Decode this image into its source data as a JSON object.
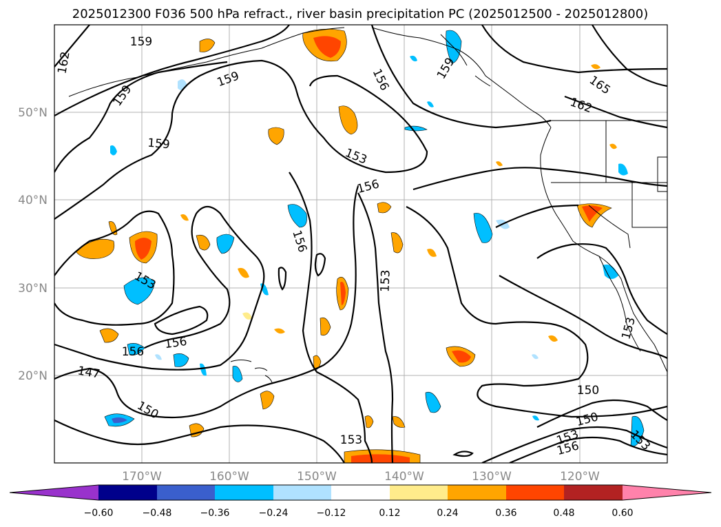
{
  "title": "2025012300 F036 500 hPa refract., river basin precipitation PC (2025012500 - 2025012800)",
  "latitude_labels": [
    "50°N",
    "40°N",
    "30°N",
    "20°N"
  ],
  "longitude_labels": [
    "170°W",
    "160°W",
    "150°W",
    "140°W",
    "130°W",
    "120°W"
  ],
  "contour_labels": [
    "159",
    "162",
    "159",
    "159",
    "159",
    "156",
    "159",
    "162",
    "165",
    "153",
    "156",
    "156",
    "153",
    "153",
    "156",
    "156",
    "147",
    "150",
    "153",
    "153",
    "150",
    "150",
    "153",
    "156",
    "153"
  ],
  "colorbar": {
    "colors": [
      "#9932cc",
      "#00008b",
      "#3a5fcd",
      "#00bfff",
      "#b0e2ff",
      "#ffffff",
      "#ffec8b",
      "#ffa500",
      "#ff4500",
      "#b22222",
      "#ff82ab"
    ],
    "tick_labels": [
      "−0.60",
      "−0.48",
      "−0.36",
      "−0.24",
      "−0.12",
      "0.12",
      "0.24",
      "0.36",
      "0.48",
      "0.60"
    ],
    "levels": [
      -0.6,
      -0.48,
      -0.36,
      -0.24,
      -0.12,
      0.12,
      0.24,
      0.36,
      0.48,
      0.6
    ]
  },
  "map_extent": {
    "lon": [
      -180,
      -110
    ],
    "lat": [
      10,
      60
    ]
  }
}
